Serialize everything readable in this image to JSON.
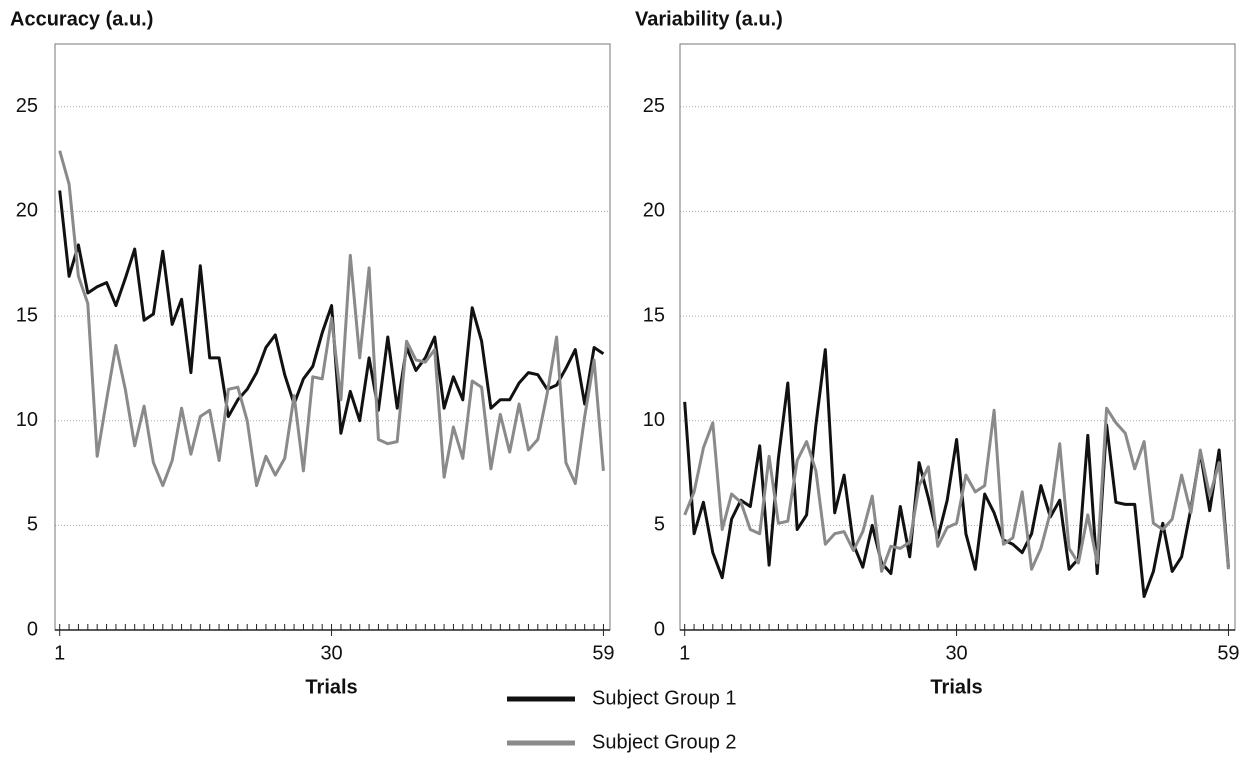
{
  "chart_data": [
    {
      "type": "line",
      "title": "Accuracy (a.u.)",
      "x_label": "Trials",
      "x": [
        1,
        2,
        3,
        4,
        5,
        6,
        7,
        8,
        9,
        10,
        11,
        12,
        13,
        14,
        15,
        16,
        17,
        18,
        19,
        20,
        21,
        22,
        23,
        24,
        25,
        26,
        27,
        28,
        29,
        30,
        31,
        32,
        33,
        34,
        35,
        36,
        37,
        38,
        39,
        40,
        41,
        42,
        43,
        44,
        45,
        46,
        47,
        48,
        49,
        50,
        51,
        52,
        53,
        54,
        55,
        56,
        57,
        58,
        59
      ],
      "xlim": [
        0.5,
        59.7
      ],
      "xticks": [
        1,
        30,
        59
      ],
      "ylim": [
        0,
        28
      ],
      "yticks": [
        0,
        5,
        10,
        15,
        20,
        25
      ],
      "grid": true,
      "series": [
        {
          "color": "#111111",
          "values": [
            21,
            16.9,
            18.4,
            16.1,
            16.4,
            16.6,
            15.5,
            16.8,
            18.2,
            14.8,
            15.1,
            18.1,
            14.6,
            15.8,
            12.3,
            17.4,
            13,
            13,
            10.2,
            11,
            11.5,
            12.3,
            13.5,
            14.1,
            12.2,
            10.8,
            12,
            12.6,
            14.2,
            15.5,
            9.4,
            11.4,
            10,
            13,
            10.5,
            14,
            10.6,
            13.5,
            12.4,
            13,
            14,
            10.6,
            12.1,
            11,
            15.4,
            13.8,
            10.6,
            11,
            11,
            11.8,
            12.3,
            12.2,
            11.5,
            11.7,
            12.5,
            13.4,
            10.8,
            13.5,
            13.2
          ]
        },
        {
          "color": "#8a8a8a",
          "values": [
            22.9,
            21.3,
            16.9,
            15.6,
            8.3,
            11,
            13.6,
            11.5,
            8.8,
            10.7,
            8,
            6.9,
            8.1,
            10.6,
            8.4,
            10.2,
            10.5,
            8.1,
            11.5,
            11.6,
            10,
            6.9,
            8.3,
            7.4,
            8.2,
            11.2,
            7.6,
            12.1,
            12,
            14.9,
            11,
            17.9,
            13,
            17.3,
            9.1,
            8.9,
            9,
            13.8,
            12.9,
            12.8,
            13.4,
            7.3,
            9.7,
            8.2,
            11.9,
            11.6,
            7.7,
            10.3,
            8.5,
            10.8,
            8.6,
            9.1,
            11.3,
            14,
            8,
            7,
            10.2,
            12.9,
            7.6
          ]
        }
      ]
    },
    {
      "type": "line",
      "title": "Variability (a.u.)",
      "x_label": "Trials",
      "x": [
        1,
        2,
        3,
        4,
        5,
        6,
        7,
        8,
        9,
        10,
        11,
        12,
        13,
        14,
        15,
        16,
        17,
        18,
        19,
        20,
        21,
        22,
        23,
        24,
        25,
        26,
        27,
        28,
        29,
        30,
        31,
        32,
        33,
        34,
        35,
        36,
        37,
        38,
        39,
        40,
        41,
        42,
        43,
        44,
        45,
        46,
        47,
        48,
        49,
        50,
        51,
        52,
        53,
        54,
        55,
        56,
        57,
        58,
        59
      ],
      "xlim": [
        0.5,
        59.7
      ],
      "xticks": [
        1,
        30,
        59
      ],
      "ylim": [
        0,
        28
      ],
      "yticks": [
        0,
        5,
        10,
        15,
        20,
        25
      ],
      "grid": true,
      "series": [
        {
          "color": "#111111",
          "values": [
            10.9,
            4.6,
            6.1,
            3.7,
            2.5,
            5.3,
            6.2,
            5.9,
            8.8,
            3.1,
            8.2,
            11.8,
            4.8,
            5.5,
            9.8,
            13.4,
            5.6,
            7.4,
            4.1,
            3,
            5,
            3.2,
            2.7,
            5.9,
            3.5,
            8,
            6.3,
            4.4,
            6.2,
            9.1,
            4.6,
            2.9,
            6.5,
            5.6,
            4.3,
            4.1,
            3.7,
            4.6,
            6.9,
            5.4,
            6.2,
            2.9,
            3.4,
            9.3,
            2.7,
            9.8,
            6.1,
            6,
            6,
            1.6,
            2.8,
            5.1,
            2.8,
            3.5,
            5.8,
            8.5,
            5.7,
            8.6,
            3
          ]
        },
        {
          "color": "#8a8a8a",
          "values": [
            5.5,
            6.6,
            8.7,
            9.9,
            4.8,
            6.5,
            6.1,
            4.8,
            4.6,
            8.3,
            5.1,
            5.2,
            8.1,
            9,
            7.6,
            4.1,
            4.6,
            4.7,
            3.8,
            4.7,
            6.4,
            2.8,
            4,
            3.9,
            4.2,
            6.9,
            7.8,
            4,
            4.9,
            5.1,
            7.4,
            6.6,
            6.9,
            10.5,
            4.1,
            4.4,
            6.6,
            2.9,
            3.9,
            5.6,
            8.9,
            3.9,
            3.2,
            5.5,
            3.2,
            10.6,
            9.9,
            9.4,
            7.7,
            9,
            5.1,
            4.8,
            5.3,
            7.4,
            5.6,
            8.6,
            6.4,
            8,
            2.9
          ]
        }
      ]
    }
  ],
  "legend": [
    {
      "name": "Subject Group 1",
      "color": "#111111"
    },
    {
      "name": "Subject Group 2",
      "color": "#8a8a8a"
    }
  ]
}
